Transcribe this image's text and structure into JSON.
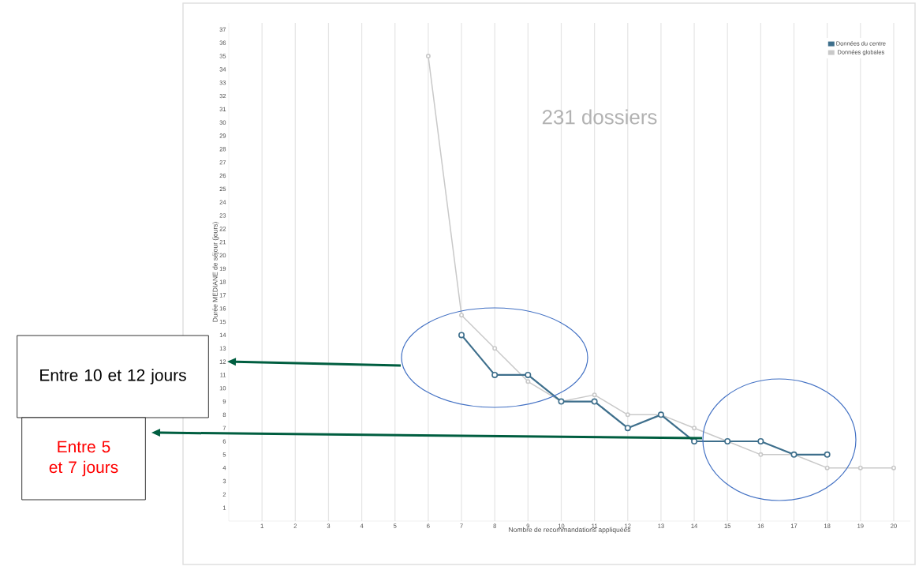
{
  "chart_data": {
    "type": "line",
    "xlabel": "Nombre de recommandations appliquées",
    "ylabel": "Durée MEDIANE de séjour (jours)",
    "xlim": [
      0,
      20.5
    ],
    "xticks": [
      1,
      2,
      3,
      4,
      5,
      6,
      7,
      8,
      9,
      10,
      11,
      12,
      13,
      14,
      15,
      16,
      17,
      18,
      19,
      20
    ],
    "ylim": [
      0,
      37.5
    ],
    "yticks": [
      1,
      2,
      3,
      4,
      5,
      6,
      7,
      8,
      9,
      10,
      11,
      12,
      13,
      14,
      15,
      16,
      17,
      18,
      19,
      20,
      21,
      22,
      23,
      24,
      25,
      26,
      27,
      28,
      29,
      30,
      31,
      32,
      33,
      34,
      35,
      36,
      37
    ],
    "grid": "x",
    "legend": "top right",
    "marker": "circle",
    "annotations": [
      "Entre 10 et 12 jours",
      "Entre 5 et 7 jours",
      "231 dossiers"
    ],
    "series": [
      {
        "name": "Données du centre",
        "color": "#3e6f8c",
        "x": [
          7,
          8,
          9,
          10,
          11,
          12,
          13,
          14,
          15,
          16,
          17,
          18
        ],
        "values": [
          14,
          11,
          11,
          9,
          9,
          7,
          8,
          6,
          6,
          6,
          5,
          5
        ]
      },
      {
        "name": "Données globales",
        "color": "#c9c9c9",
        "x": [
          6,
          7,
          8,
          9,
          10,
          11,
          12,
          13,
          14,
          15,
          16,
          17,
          18,
          19,
          20
        ],
        "values": [
          35,
          15.5,
          13,
          10.5,
          9,
          9.5,
          8,
          8,
          7,
          6,
          5,
          5,
          4,
          4,
          4
        ]
      }
    ]
  }
}
